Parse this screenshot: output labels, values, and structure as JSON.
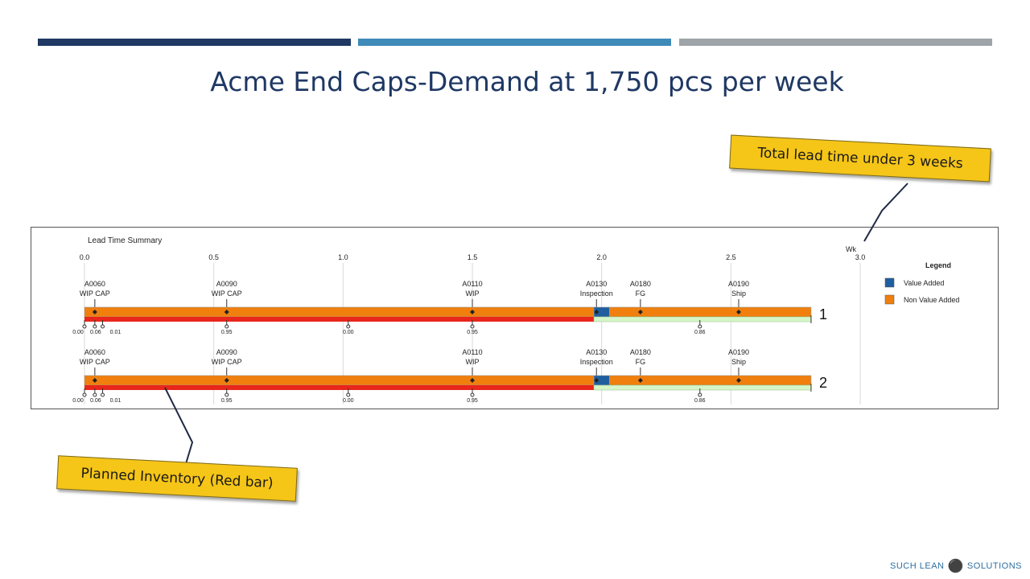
{
  "slide": {
    "title": "Acme End Caps-Demand at 1,750 pcs per week",
    "callout_top": "Total lead time under 3 weeks",
    "callout_bottom": "Planned Inventory (Red bar)",
    "brand_left": "SUCH LEAN",
    "brand_right": "SOLUTIONS",
    "brand_icon": "lightbulb-icon",
    "accent_colors": [
      "#1f3864",
      "#3e8ab8",
      "#9ea4a8"
    ]
  },
  "chart_data": {
    "type": "bar",
    "title": "Lead Time Summary",
    "x_unit": "Wk",
    "xlim": [
      0,
      3.0
    ],
    "x_ticks": [
      "0.0",
      "0.5",
      "1.0",
      "1.5",
      "2.0",
      "2.5",
      "3.0"
    ],
    "grid": true,
    "legend_title": "Legend",
    "legend_position": "right",
    "legend": [
      {
        "name": "Value Added",
        "color": "#1f5fa0"
      },
      {
        "name": "Non Value Added",
        "color": "#f07f0d"
      }
    ],
    "colors": {
      "value_added": "#1f5fa0",
      "non_value_added": "#f07f0d",
      "planned_inventory": "#e8261b",
      "remaining": "#d6f5c8"
    },
    "rows": [
      {
        "label": "1",
        "steps": [
          {
            "code": "A0060",
            "name": "WIP CAP",
            "x": 0.04
          },
          {
            "code": "A0090",
            "name": "WIP CAP",
            "x": 0.55
          },
          {
            "code": "A0110",
            "name": "WIP",
            "x": 1.5
          },
          {
            "code": "A0130",
            "name": "Inspection",
            "x": 1.98
          },
          {
            "code": "A0180",
            "name": "FG",
            "x": 2.15
          },
          {
            "code": "A0190",
            "name": "Ship",
            "x": 2.53
          }
        ],
        "segments": [
          {
            "start": 0.0,
            "end": 1.97,
            "kind": "non_value_added"
          },
          {
            "start": 1.97,
            "end": 2.03,
            "kind": "value_added"
          },
          {
            "start": 2.03,
            "end": 2.81,
            "kind": "non_value_added"
          }
        ],
        "planned_inventory_end": 1.97,
        "total": 2.81,
        "inventory_markers": [
          {
            "x": 0.0,
            "label": "0.00"
          },
          {
            "x": 0.04,
            "label": "0.06"
          },
          {
            "x": 0.07,
            "label": "0.01"
          },
          {
            "x": 0.55,
            "label": "0.95"
          },
          {
            "x": 1.02,
            "label": "0.00"
          },
          {
            "x": 1.5,
            "label": "0.95"
          },
          {
            "x": 2.38,
            "label": "0.86"
          }
        ]
      },
      {
        "label": "2",
        "steps": [
          {
            "code": "A0060",
            "name": "WIP CAP",
            "x": 0.04
          },
          {
            "code": "A0090",
            "name": "WIP CAP",
            "x": 0.55
          },
          {
            "code": "A0110",
            "name": "WIP",
            "x": 1.5
          },
          {
            "code": "A0130",
            "name": "Inspection",
            "x": 1.98
          },
          {
            "code": "A0180",
            "name": "FG",
            "x": 2.15
          },
          {
            "code": "A0190",
            "name": "Ship",
            "x": 2.53
          }
        ],
        "segments": [
          {
            "start": 0.0,
            "end": 1.97,
            "kind": "non_value_added"
          },
          {
            "start": 1.97,
            "end": 2.03,
            "kind": "value_added"
          },
          {
            "start": 2.03,
            "end": 2.81,
            "kind": "non_value_added"
          }
        ],
        "planned_inventory_end": 1.97,
        "total": 2.81,
        "inventory_markers": [
          {
            "x": 0.0,
            "label": "0.00"
          },
          {
            "x": 0.04,
            "label": "0.06"
          },
          {
            "x": 0.07,
            "label": "0.01"
          },
          {
            "x": 0.55,
            "label": "0.95"
          },
          {
            "x": 1.02,
            "label": "0.00"
          },
          {
            "x": 1.5,
            "label": "0.95"
          },
          {
            "x": 2.38,
            "label": "0.86"
          }
        ]
      }
    ]
  }
}
